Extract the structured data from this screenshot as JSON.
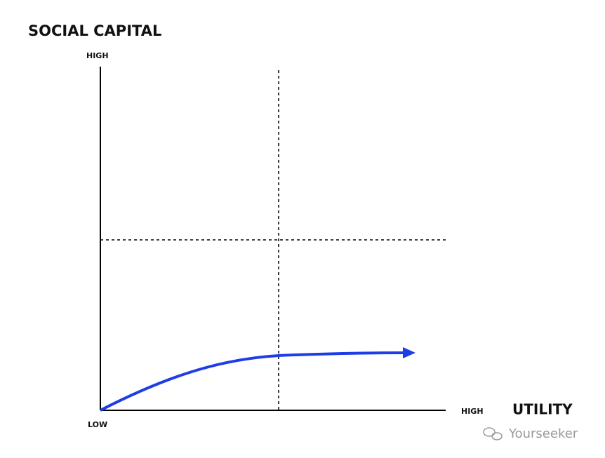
{
  "title": "SOCIAL CAPITAL",
  "y_axis": {
    "top_label": "HIGH",
    "bottom_label": "LOW"
  },
  "x_axis": {
    "end_label": "HIGH",
    "title": "UTILITY"
  },
  "watermark": "Yourseeker"
}
